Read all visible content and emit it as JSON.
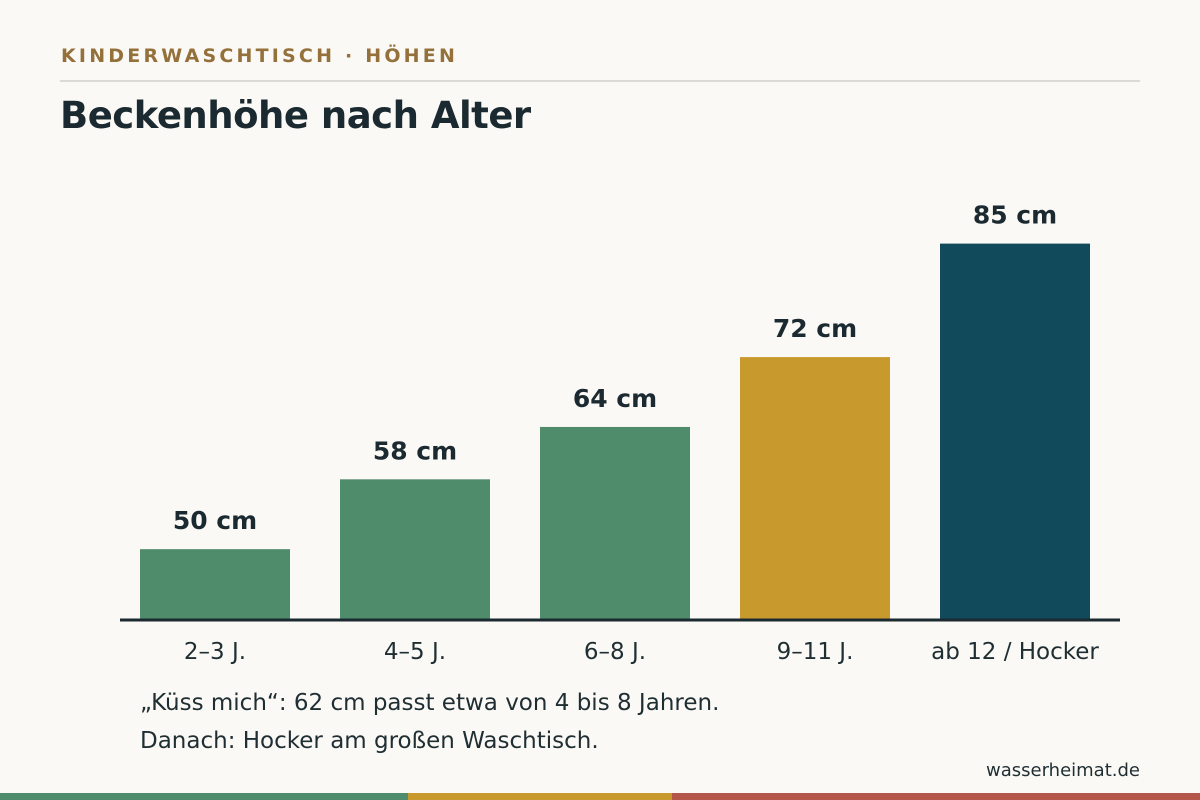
{
  "header": {
    "kicker": "KINDERWASCHTISCH · HÖHEN",
    "title": "Beckenhöhe nach Alter"
  },
  "chart_data": {
    "type": "bar",
    "title": "Beckenhöhe nach Alter",
    "xlabel": "",
    "ylabel": "",
    "unit": "cm",
    "categories": [
      "2–3 J.",
      "4–5 J.",
      "6–8 J.",
      "9–11 J.",
      "ab 12 / Hocker"
    ],
    "values": [
      50,
      58,
      64,
      72,
      85
    ],
    "value_labels": [
      "50 cm",
      "58 cm",
      "64 cm",
      "72 cm",
      "85 cm"
    ],
    "colors": [
      "#4f8c6b",
      "#4f8c6b",
      "#4f8c6b",
      "#c89a2e",
      "#114a5a"
    ],
    "grid": false,
    "legend": "none"
  },
  "notes": {
    "line1": "„Küss mich“: 62 cm passt etwa von 4 bis 8 Jahren.",
    "line2": "Danach: Hocker am großen Waschtisch."
  },
  "footer": {
    "source": "wasserheimat.de",
    "stripe_colors": [
      "#4f8c6b",
      "#c89a2e",
      "#b5564a"
    ]
  }
}
